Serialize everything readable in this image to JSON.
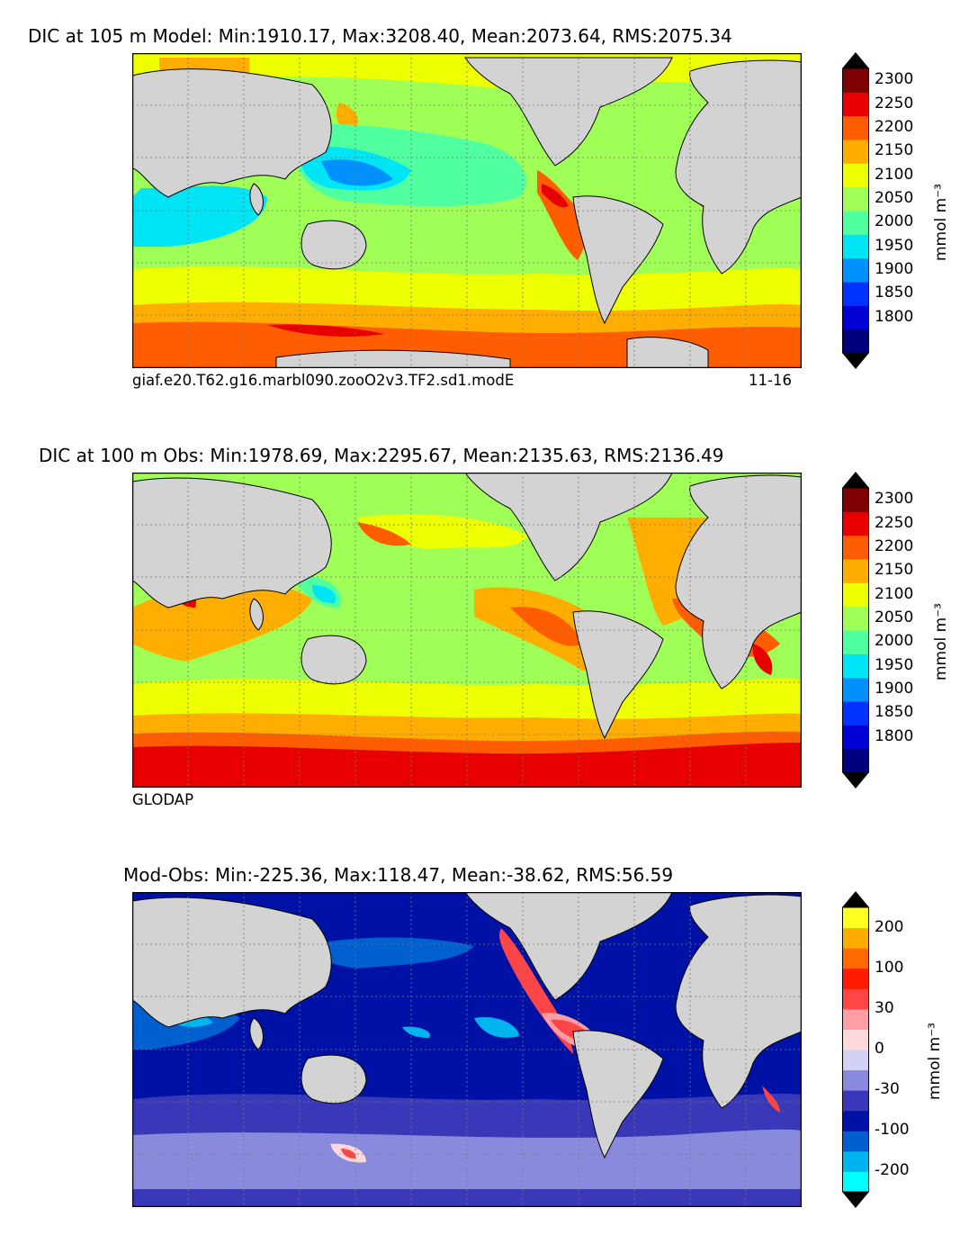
{
  "panels": [
    {
      "title": "DIC at 105 m Model: Min:1910.17, Max:3208.40, Mean:2073.64, RMS:2075.34",
      "caption_left": "giaf.e20.T62.g16.marbl090.zooO2v3.TF2.sd1.modE",
      "caption_right": "11-16",
      "unit": "mmol m⁻³",
      "colorbar": {
        "colors": [
          "#00007f",
          "#0000d5",
          "#0033ff",
          "#0091ff",
          "#00e5f5",
          "#50ff9f",
          "#a0ff57",
          "#eeff00",
          "#ffae00",
          "#ff5d00",
          "#e80000",
          "#7f0000"
        ],
        "ticks": [
          "1800",
          "1850",
          "1900",
          "1950",
          "2000",
          "2050",
          "2100",
          "2150",
          "2200",
          "2250",
          "2300"
        ]
      }
    },
    {
      "title": "DIC at 100 m Obs: Min:1978.69, Max:2295.67, Mean:2135.63, RMS:2136.49",
      "caption_left": "GLODAP",
      "caption_right": "",
      "unit": "mmol m⁻³",
      "colorbar": {
        "colors": [
          "#00007f",
          "#0000d5",
          "#0033ff",
          "#0091ff",
          "#00e5f5",
          "#50ff9f",
          "#a0ff57",
          "#eeff00",
          "#ffae00",
          "#ff5d00",
          "#e80000",
          "#7f0000"
        ],
        "ticks": [
          "1800",
          "1850",
          "1900",
          "1950",
          "2000",
          "2050",
          "2100",
          "2150",
          "2200",
          "2250",
          "2300"
        ]
      }
    },
    {
      "title": "Mod-Obs: Min:-225.36, Max:118.47, Mean:-38.62, RMS:56.59",
      "caption_left": "",
      "caption_right": "",
      "unit": "mmol m⁻³",
      "colorbar": {
        "colors": [
          "#00ffff",
          "#00b4f0",
          "#0060d0",
          "#0012a6",
          "#3838b8",
          "#8a8adc",
          "#d2d2f4",
          "#ffd8dc",
          "#ff9ca4",
          "#ff4545",
          "#ff1a00",
          "#ff6a00",
          "#ffac00",
          "#ffff20"
        ],
        "ticks": [
          "-200",
          "-100",
          "-30",
          "0",
          "30",
          "100",
          "200"
        ]
      }
    }
  ]
}
